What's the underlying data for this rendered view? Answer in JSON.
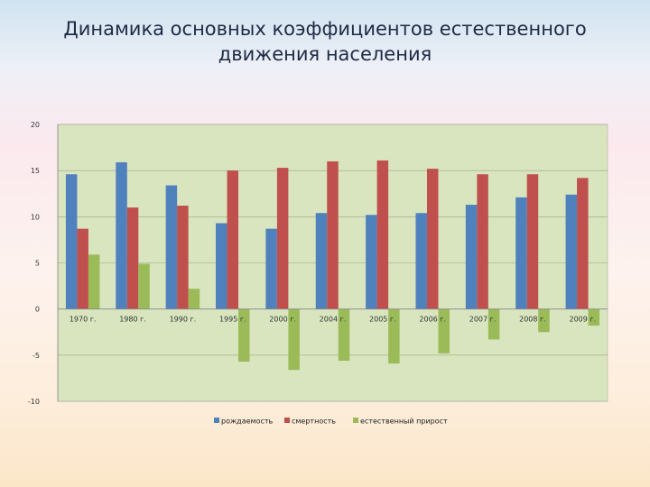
{
  "title_lines": [
    "Динамика основных коэффициентов естественного",
    "движения населения"
  ],
  "colors": {
    "plot_bg": "#d9e5bf",
    "grid": "#9aa88a",
    "axis": "#8a8a8a"
  },
  "chart_data": {
    "type": "bar",
    "title": "Динамика основных коэффициентов естественного движения населения",
    "categories": [
      "1970 г.",
      "1980 г.",
      "1990 г.",
      "1995 г.",
      "2000 г.",
      "2004 г.",
      "2005 г.",
      "2006 г.",
      "2007 г.",
      "2008 г.",
      "2009 г."
    ],
    "series": [
      {
        "name": "рождаемость",
        "color": "#4f81bd",
        "values": [
          14.6,
          15.9,
          13.4,
          9.3,
          8.7,
          10.4,
          10.2,
          10.4,
          11.3,
          12.1,
          12.4
        ]
      },
      {
        "name": "смертность",
        "color": "#c0504d",
        "values": [
          8.7,
          11.0,
          11.2,
          15.0,
          15.3,
          16.0,
          16.1,
          15.2,
          14.6,
          14.6,
          14.2
        ]
      },
      {
        "name": "естественный прирост",
        "color": "#9bbb59",
        "values": [
          5.9,
          4.9,
          2.2,
          -5.7,
          -6.6,
          -5.6,
          -5.9,
          -4.8,
          -3.3,
          -2.5,
          -1.8
        ]
      }
    ],
    "yticks": [
      20,
      15,
      10,
      5,
      0,
      -5,
      -10
    ],
    "ylim": [
      -10,
      20
    ],
    "grid": true,
    "legend": "bottom"
  }
}
